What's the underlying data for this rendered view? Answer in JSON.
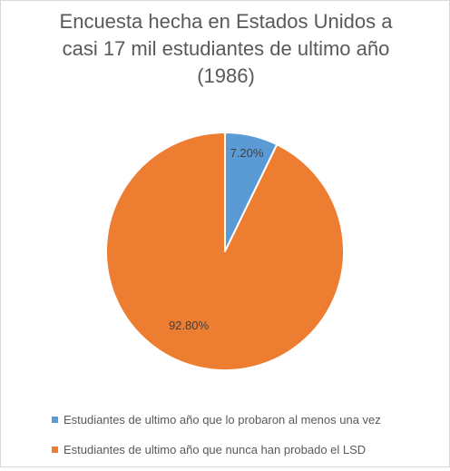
{
  "title_lines": [
    "Encuesta hecha en Estados Unidos a",
    "casi 17 mil estudiantes de ultimo año",
    "(1986)"
  ],
  "chart_data": {
    "type": "pie",
    "title": "Encuesta hecha en Estados Unidos a casi 17 mil estudiantes de ultimo año (1986)",
    "categories": [
      "Estudiantes de ultimo año que lo probaron al menos una vez",
      "Estudiantes de ultimo año que nunca han probado el LSD"
    ],
    "values": [
      7.2,
      92.8
    ],
    "data_labels": [
      "7.20%",
      "92.80%"
    ],
    "colors": [
      "#5b9bd5",
      "#ed7d31"
    ],
    "legend_position": "bottom",
    "start_angle": "top, clockwise"
  }
}
